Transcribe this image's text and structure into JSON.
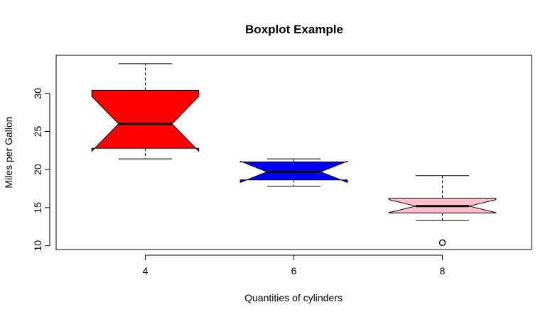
{
  "chart_data": {
    "type": "boxplot",
    "notched": true,
    "title": "Boxplot Example",
    "xlabel": "Quantities of cylinders",
    "ylabel": "Miles per Gallon",
    "categories": [
      "4",
      "6",
      "8"
    ],
    "yticks": [
      10,
      15,
      20,
      25,
      30
    ],
    "ylim": [
      9.5,
      35.0
    ],
    "grid": false,
    "boxes": [
      {
        "category": "4",
        "color": "#ff0000",
        "whisker_low": 21.4,
        "q1": 22.8,
        "median": 26.0,
        "q3": 30.4,
        "whisker_high": 33.9,
        "notch_low": 22.4,
        "notch_high": 29.6,
        "outliers": []
      },
      {
        "category": "6",
        "color": "#0000ff",
        "whisker_low": 17.8,
        "q1": 18.65,
        "median": 19.7,
        "q3": 21.0,
        "whisker_high": 21.4,
        "notch_low": 18.3,
        "notch_high": 21.1,
        "outliers": []
      },
      {
        "category": "8",
        "color": "#ffc0cb",
        "whisker_low": 13.3,
        "q1": 14.3,
        "median": 15.2,
        "q3": 16.25,
        "whisker_high": 19.2,
        "notch_low": 14.35,
        "notch_high": 16.05,
        "outliers": [
          10.4
        ]
      }
    ]
  }
}
